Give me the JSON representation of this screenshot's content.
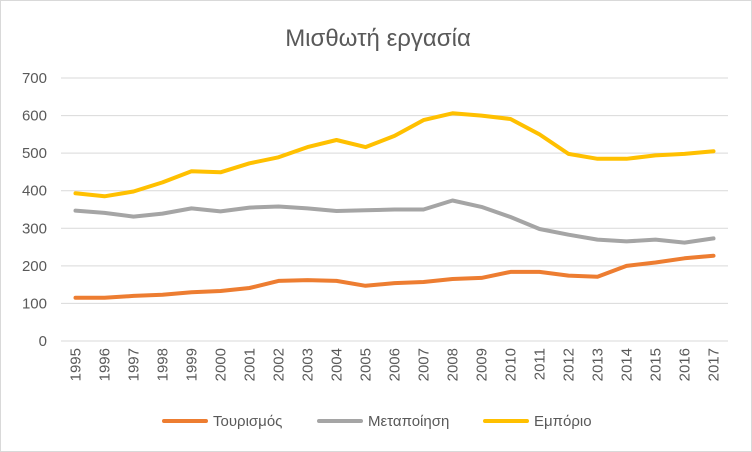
{
  "chart_data": {
    "type": "line",
    "title": "Μισθωτή εργασία",
    "xlabel": "",
    "ylabel": "",
    "ylim": [
      0,
      700
    ],
    "yticks": [
      "0",
      "100",
      "200",
      "300",
      "400",
      "500",
      "600",
      "700"
    ],
    "grid": true,
    "legend": "bottom",
    "categories": [
      "1995",
      "1996",
      "1997",
      "1998",
      "1999",
      "2000",
      "2001",
      "2002",
      "2003",
      "2004",
      "2005",
      "2006",
      "2007",
      "2008",
      "2009",
      "2010",
      "2011",
      "2012",
      "2013",
      "2014",
      "2015",
      "2016",
      "2017"
    ],
    "series": [
      {
        "name": "Τουρισμός",
        "color": "#ED7D31",
        "values": [
          115,
          115,
          120,
          123,
          130,
          133,
          141,
          160,
          162,
          160,
          147,
          154,
          157,
          165,
          168,
          184,
          184,
          174,
          171,
          200,
          209,
          220,
          227
        ]
      },
      {
        "name": "Μεταποίηση",
        "color": "#A5A5A5",
        "values": [
          347,
          341,
          331,
          339,
          353,
          345,
          355,
          358,
          353,
          346,
          348,
          350,
          350,
          374,
          357,
          330,
          298,
          283,
          270,
          265,
          270,
          262,
          273
        ]
      },
      {
        "name": "Εμπόριο",
        "color": "#FFC000",
        "values": [
          393,
          385,
          398,
          422,
          452,
          449,
          473,
          489,
          516,
          535,
          516,
          546,
          588,
          606,
          600,
          591,
          550,
          498,
          485,
          485,
          494,
          498,
          505
        ]
      }
    ]
  }
}
